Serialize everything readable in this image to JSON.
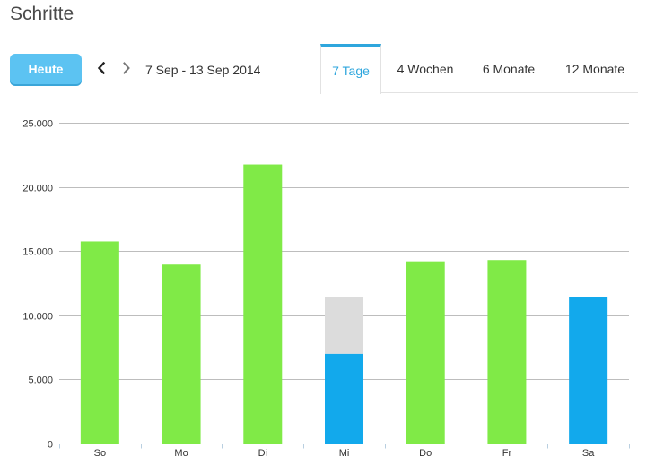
{
  "header": {
    "title": "Schritte"
  },
  "toolbar": {
    "today_label": "Heute",
    "date_range": "7 Sep - 13 Sep 2014",
    "prev_icon": "chevron-left-icon",
    "next_icon": "chevron-right-icon"
  },
  "tabs": [
    {
      "label": "7 Tage",
      "active": true
    },
    {
      "label": "4 Wochen",
      "active": false
    },
    {
      "label": "6 Monate",
      "active": false
    },
    {
      "label": "12 Monate",
      "active": false
    }
  ],
  "colors": {
    "green": "#80ea47",
    "blue": "#12a9ec",
    "remaining": "#dcdcdc",
    "accent": "#2ea6dd"
  },
  "chart_data": {
    "type": "bar",
    "categories": [
      "So",
      "Mo",
      "Di",
      "Mi",
      "Do",
      "Fr",
      "Sa"
    ],
    "values": [
      15750,
      13950,
      21750,
      7000,
      14200,
      14300,
      11400
    ],
    "goal_remaining": [
      0,
      0,
      0,
      4400,
      0,
      0,
      0
    ],
    "bar_colors": [
      "green",
      "green",
      "green",
      "blue",
      "green",
      "green",
      "blue"
    ],
    "ylim": [
      0,
      25000
    ],
    "yticks": [
      0,
      5000,
      10000,
      15000,
      20000,
      25000
    ],
    "ytick_labels": [
      "0",
      "5.000",
      "10.000",
      "15.000",
      "20.000",
      "25.000"
    ],
    "grid": true
  }
}
